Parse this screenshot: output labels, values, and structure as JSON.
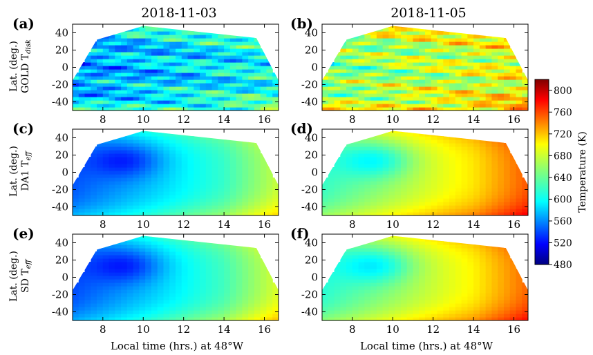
{
  "figure": {
    "column_titles": [
      "2018-11-03",
      "2018-11-05"
    ],
    "panel_labels": [
      "(a)",
      "(b)",
      "(c)",
      "(d)",
      "(e)",
      "(f)"
    ],
    "row_labels": [
      {
        "line1": "Lat. (deg.)",
        "line2": "GOLD T",
        "sub": "disk"
      },
      {
        "line1": "Lat. (deg.)",
        "line2": "DA1 T",
        "sub": "eff"
      },
      {
        "line1": "Lat. (deg.)",
        "line2": "SD T",
        "sub": "eff"
      }
    ],
    "xlabel": "Local time (hrs.) at 48°W",
    "colorbar_label": "Temperature (K)"
  },
  "chart_data": {
    "type": "heatmap",
    "panels": [
      {
        "id": "a",
        "date": "2018-11-03",
        "row": "GOLD Tdisk",
        "field": "gold",
        "base": 590,
        "trend": 4,
        "noise": 55
      },
      {
        "id": "b",
        "date": "2018-11-05",
        "row": "GOLD Tdisk",
        "field": "gold",
        "base": 665,
        "trend": 4,
        "noise": 55
      },
      {
        "id": "c",
        "date": "2018-11-03",
        "row": "DA1 Teff",
        "field": "smooth",
        "base": 585,
        "trend": 10,
        "noise": 0
      },
      {
        "id": "d",
        "date": "2018-11-05",
        "row": "DA1 Teff",
        "field": "smooth",
        "base": 660,
        "trend": 10,
        "noise": 0
      },
      {
        "id": "e",
        "date": "2018-11-03",
        "row": "SD Teff",
        "field": "smooth",
        "base": 585,
        "trend": 11,
        "noise": 0
      },
      {
        "id": "f",
        "date": "2018-11-05",
        "row": "SD Teff",
        "field": "smooth",
        "base": 655,
        "trend": 10,
        "noise": 0
      }
    ],
    "x_range": [
      6.5,
      16.7
    ],
    "x_ticks": [
      8,
      10,
      12,
      14,
      16
    ],
    "y_range": [
      -50,
      50
    ],
    "y_ticks": [
      -40,
      -20,
      0,
      20,
      40
    ],
    "coverage": [
      [
        6.5,
        -50,
        -15
      ],
      [
        7.7,
        -50,
        32
      ],
      [
        9.3,
        -50,
        43
      ],
      [
        10.0,
        -50,
        48
      ],
      [
        15.6,
        -50,
        34
      ],
      [
        16.7,
        -15,
        -15
      ]
    ],
    "colorbar": {
      "min": 480,
      "max": 820,
      "ticks": [
        480,
        520,
        560,
        600,
        640,
        680,
        720,
        760,
        800
      ],
      "colormap": "jet"
    }
  }
}
